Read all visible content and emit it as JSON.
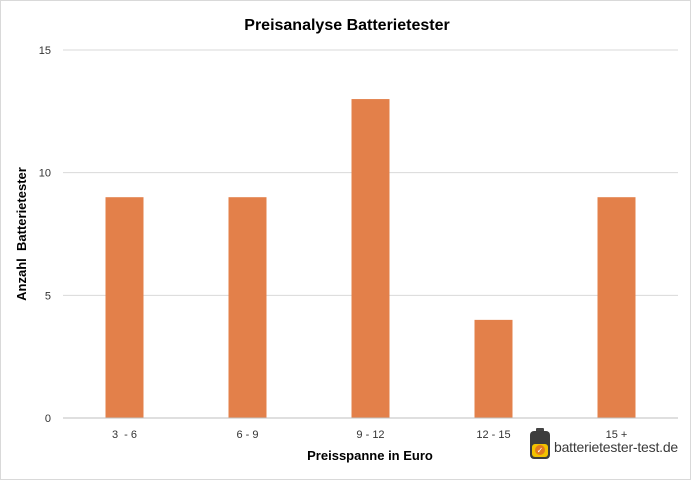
{
  "chart_data": {
    "type": "bar",
    "title": "Preisanalyse Batterietester",
    "xlabel": "Preisspanne in Euro",
    "ylabel": "Anzahl  Batterietester",
    "categories": [
      "3  - 6",
      "6 - 9",
      "9 - 12",
      "12 - 15",
      "15 +"
    ],
    "values": [
      9,
      9,
      13,
      4,
      9
    ],
    "ylim": [
      0,
      15
    ],
    "yticks": [
      0,
      5,
      10,
      15
    ],
    "grid": true,
    "legend": "none",
    "bar_color": "#E3804A"
  },
  "watermark": {
    "text": "batterietester-test.de",
    "icon": "battery-logo-icon"
  }
}
